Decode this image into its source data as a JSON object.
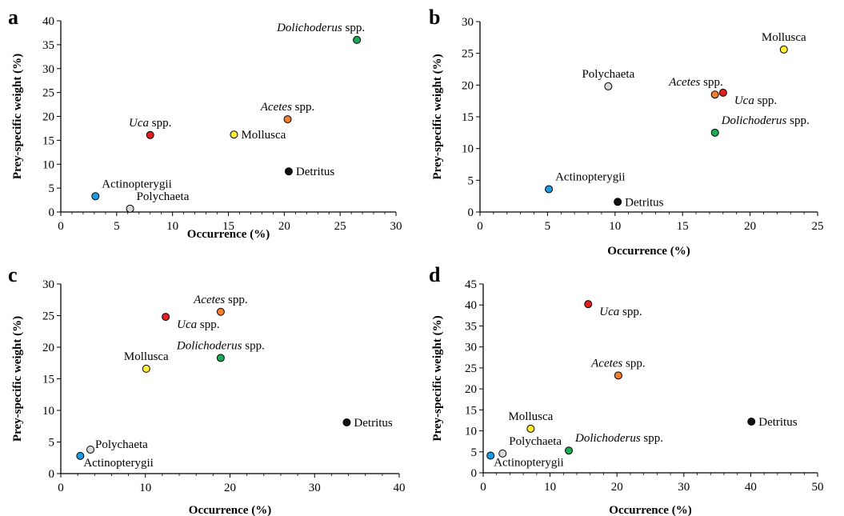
{
  "chart_data": [
    {
      "type": "scatter",
      "panel": "a",
      "xlabel": "Occurrence (%)",
      "ylabel": "Prey-specific weight (%)",
      "xlim": [
        0,
        30
      ],
      "ylim": [
        0,
        40
      ],
      "xticks": [
        0,
        5,
        10,
        15,
        20,
        25,
        30
      ],
      "yticks": [
        0,
        5,
        10,
        15,
        20,
        25,
        30,
        35,
        40
      ],
      "points": [
        {
          "label_italic": "Dolichoderus",
          "label_rest": " spp.",
          "x": 26.5,
          "y": 36.0,
          "color": "#1aaa55",
          "label_pos": "above-left"
        },
        {
          "label_italic": "Acetes",
          "label_rest": " spp.",
          "x": 20.3,
          "y": 19.4,
          "color": "#f07f32",
          "label_pos": "above"
        },
        {
          "label_italic": "Uca",
          "label_rest": " spp.",
          "x": 8.0,
          "y": 16.1,
          "color": "#e0201e",
          "label_pos": "above"
        },
        {
          "label_italic": "",
          "label_rest": "Mollusca",
          "x": 15.5,
          "y": 16.2,
          "color": "#ffee33",
          "label_pos": "right"
        },
        {
          "label_italic": "",
          "label_rest": "Detritus",
          "x": 20.4,
          "y": 8.5,
          "color": "#111111",
          "label_pos": "right"
        },
        {
          "label_italic": "",
          "label_rest": "Actinopterygii",
          "x": 3.1,
          "y": 3.3,
          "color": "#1e9be0",
          "label_pos": "above-right"
        },
        {
          "label_italic": "",
          "label_rest": "Polychaeta",
          "x": 6.2,
          "y": 0.7,
          "color": "#d8d8d8",
          "label_pos": "above-right"
        }
      ]
    },
    {
      "type": "scatter",
      "panel": "b",
      "xlabel": "Occurrence (%)",
      "ylabel": "Prey-specific weight (%)",
      "xlim": [
        0,
        25
      ],
      "ylim": [
        0,
        30
      ],
      "xticks": [
        0,
        5,
        10,
        15,
        20,
        25
      ],
      "yticks": [
        0,
        5,
        10,
        15,
        20,
        25,
        30
      ],
      "points": [
        {
          "label_italic": "",
          "label_rest": "Mollusca",
          "x": 22.5,
          "y": 25.6,
          "color": "#ffee33",
          "label_pos": "above"
        },
        {
          "label_italic": "",
          "label_rest": "Polychaeta",
          "x": 9.5,
          "y": 19.8,
          "color": "#d8d8d8",
          "label_pos": "above"
        },
        {
          "label_italic": "Acetes",
          "label_rest": " spp.",
          "x": 17.4,
          "y": 18.5,
          "color": "#f07f32",
          "label_pos": "above-left"
        },
        {
          "label_italic": "Uca",
          "label_rest": " spp.",
          "x": 18.0,
          "y": 18.8,
          "color": "#e0201e",
          "label_pos": "below-right"
        },
        {
          "label_italic": "Dolichoderus",
          "label_rest": " spp.",
          "x": 17.4,
          "y": 12.5,
          "color": "#1aaa55",
          "label_pos": "above-right"
        },
        {
          "label_italic": "",
          "label_rest": "Actinopterygii",
          "x": 5.1,
          "y": 3.6,
          "color": "#1e9be0",
          "label_pos": "above-right"
        },
        {
          "label_italic": "",
          "label_rest": "Detritus",
          "x": 10.2,
          "y": 1.6,
          "color": "#111111",
          "label_pos": "right"
        }
      ]
    },
    {
      "type": "scatter",
      "panel": "c",
      "xlabel": "Occurrence (%)",
      "ylabel": "Prey-specific weight (%)",
      "xlim": [
        0,
        40
      ],
      "ylim": [
        0,
        30
      ],
      "xticks": [
        0,
        10,
        20,
        30,
        40
      ],
      "yticks": [
        0,
        5,
        10,
        15,
        20,
        25,
        30
      ],
      "points": [
        {
          "label_italic": "Acetes",
          "label_rest": " spp.",
          "x": 18.9,
          "y": 25.6,
          "color": "#f07f32",
          "label_pos": "above"
        },
        {
          "label_italic": "Uca",
          "label_rest": " spp.",
          "x": 12.4,
          "y": 24.8,
          "color": "#e0201e",
          "label_pos": "below-right"
        },
        {
          "label_italic": "Dolichoderus",
          "label_rest": " spp.",
          "x": 18.9,
          "y": 18.3,
          "color": "#1aaa55",
          "label_pos": "above"
        },
        {
          "label_italic": "",
          "label_rest": "Mollusca",
          "x": 10.1,
          "y": 16.6,
          "color": "#ffee33",
          "label_pos": "above"
        },
        {
          "label_italic": "",
          "label_rest": "Detritus",
          "x": 33.8,
          "y": 8.1,
          "color": "#111111",
          "label_pos": "right"
        },
        {
          "label_italic": "",
          "label_rest": "Polychaeta",
          "x": 3.5,
          "y": 3.8,
          "color": "#d8d8d8",
          "label_pos": "right-up"
        },
        {
          "label_italic": "",
          "label_rest": "Actinopterygii",
          "x": 2.3,
          "y": 2.8,
          "color": "#1e9be0",
          "label_pos": "right-down"
        }
      ]
    },
    {
      "type": "scatter",
      "panel": "d",
      "xlabel": "Occurrence (%)",
      "ylabel": "Prey-specific weight (%)",
      "xlim": [
        0,
        50
      ],
      "ylim": [
        0,
        45
      ],
      "xticks": [
        0,
        10,
        20,
        30,
        40,
        50
      ],
      "yticks": [
        0,
        5,
        10,
        15,
        20,
        25,
        30,
        35,
        40,
        45
      ],
      "points": [
        {
          "label_italic": "Uca",
          "label_rest": " spp.",
          "x": 15.7,
          "y": 40.2,
          "color": "#e0201e",
          "label_pos": "below-right"
        },
        {
          "label_italic": "Acetes",
          "label_rest": " spp.",
          "x": 20.2,
          "y": 23.2,
          "color": "#f07f32",
          "label_pos": "above"
        },
        {
          "label_italic": "",
          "label_rest": "Detritus",
          "x": 40.1,
          "y": 12.2,
          "color": "#111111",
          "label_pos": "right"
        },
        {
          "label_italic": "",
          "label_rest": "Mollusca",
          "x": 7.1,
          "y": 10.5,
          "color": "#ffee33",
          "label_pos": "above"
        },
        {
          "label_italic": "Dolichoderus",
          "label_rest": " spp.",
          "x": 12.8,
          "y": 5.3,
          "color": "#1aaa55",
          "label_pos": "above-right"
        },
        {
          "label_italic": "",
          "label_rest": "Polychaeta",
          "x": 2.9,
          "y": 4.6,
          "color": "#d8d8d8",
          "label_pos": "above-right"
        },
        {
          "label_italic": "",
          "label_rest": "Actinopterygii",
          "x": 1.1,
          "y": 4.1,
          "color": "#1e9be0",
          "label_pos": "right-down"
        }
      ]
    }
  ]
}
